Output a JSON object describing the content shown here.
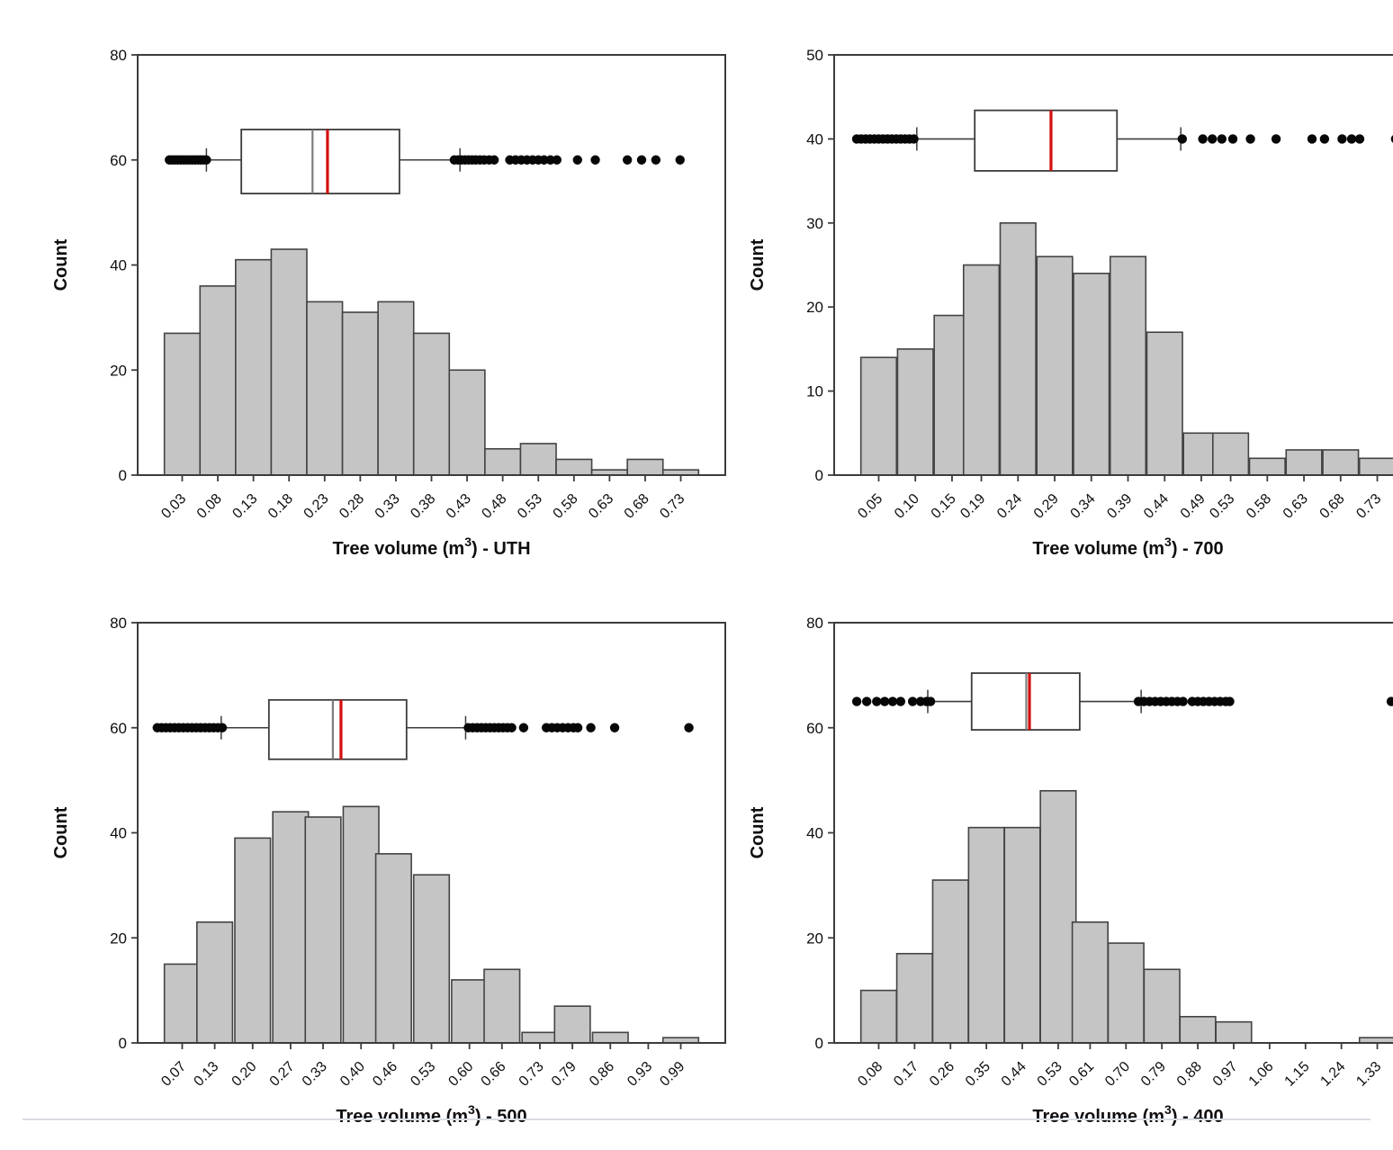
{
  "page": {
    "background": "#ffffff",
    "divider_color": "#d8dde2",
    "colors": {
      "bar_fill": "#c5c5c5",
      "bar_stroke": "#434343",
      "axis": "#3c3c3c",
      "text": "#0f0f0f",
      "box_fill": "#ffffff",
      "box_stroke": "#3c3c3c",
      "median_line": "#7d7d7d",
      "mean_line": "#d40f0f",
      "outlier_dot": "#070707"
    }
  },
  "chart_data": [
    {
      "id": "uth",
      "type": "bar",
      "subtype": "histogram_with_boxplot",
      "ylabel": "Count",
      "xlabel_prefix": "Tree volume (m",
      "xlabel_sup": "3",
      "xlabel_suffix": ") - UTH",
      "ylim": [
        0,
        80
      ],
      "yticks": [
        "0",
        "20",
        "40",
        "60",
        "80"
      ],
      "grid": false,
      "legend": "none",
      "categories": [
        "0.03",
        "0.08",
        "0.13",
        "0.18",
        "0.23",
        "0.28",
        "0.33",
        "0.38",
        "0.43",
        "0.48",
        "0.53",
        "0.58",
        "0.63",
        "0.68",
        "0.73"
      ],
      "values": [
        27,
        36,
        41,
        43,
        33,
        31,
        33,
        27,
        20,
        5,
        6,
        3,
        1,
        3,
        1
      ],
      "boxplot": {
        "center_y": 60,
        "box_top_y": 65.8,
        "box_bottom_y": 53.6,
        "whisker_low": 0.064,
        "q1": 0.113,
        "median": 0.213,
        "mean": 0.234,
        "q3": 0.335,
        "whisker_high": 0.42,
        "outliers_low": [
          0.012,
          0.016,
          0.02,
          0.024,
          0.028,
          0.032,
          0.036,
          0.04,
          0.044,
          0.048,
          0.052,
          0.056,
          0.06,
          0.064
        ],
        "outliers_high": [
          0.412,
          0.417,
          0.422,
          0.427,
          0.432,
          0.437,
          0.442,
          0.448,
          0.454,
          0.461,
          0.468,
          0.49,
          0.498,
          0.506,
          0.514,
          0.522,
          0.53,
          0.538,
          0.547,
          0.556,
          0.585,
          0.61,
          0.655,
          0.675,
          0.695,
          0.729
        ]
      }
    },
    {
      "id": "700",
      "type": "bar",
      "subtype": "histogram_with_boxplot",
      "ylabel": "Count",
      "xlabel_prefix": "Tree volume (m",
      "xlabel_sup": "3",
      "xlabel_suffix": ") - 700",
      "ylim": [
        0,
        50
      ],
      "yticks": [
        "0",
        "10",
        "20",
        "30",
        "40",
        "50"
      ],
      "grid": false,
      "legend": "none",
      "categories": [
        "0.05",
        "0.10",
        "0.15",
        "0.19",
        "0.24",
        "0.29",
        "0.34",
        "0.39",
        "0.44",
        "0.49",
        "0.53",
        "0.58",
        "0.63",
        "0.68",
        "0.73"
      ],
      "values": [
        14,
        15,
        19,
        25,
        30,
        26,
        24,
        26,
        17,
        5,
        5,
        2,
        3,
        3,
        2
      ],
      "boxplot": {
        "center_y": 40,
        "box_top_y": 43.4,
        "box_bottom_y": 36.2,
        "whisker_low": 0.102,
        "q1": 0.181,
        "median": null,
        "mean": 0.285,
        "q3": 0.375,
        "whisker_high": 0.462,
        "outliers_low": [
          0.02,
          0.026,
          0.032,
          0.038,
          0.044,
          0.05,
          0.056,
          0.062,
          0.068,
          0.074,
          0.08,
          0.086,
          0.092,
          0.098
        ],
        "outliers_high": [
          0.464,
          0.492,
          0.505,
          0.518,
          0.533,
          0.557,
          0.592,
          0.641,
          0.658,
          0.682,
          0.695,
          0.706,
          0.755
        ]
      }
    },
    {
      "id": "500",
      "type": "bar",
      "subtype": "histogram_with_boxplot",
      "ylabel": "Count",
      "xlabel_prefix": "Tree volume (m",
      "xlabel_sup": "3",
      "xlabel_suffix": ") - 500",
      "ylim": [
        0,
        80
      ],
      "yticks": [
        "0",
        "20",
        "40",
        "60",
        "80"
      ],
      "grid": false,
      "legend": "none",
      "categories": [
        "0.07",
        "0.13",
        "0.20",
        "0.27",
        "0.33",
        "0.40",
        "0.46",
        "0.53",
        "0.60",
        "0.66",
        "0.73",
        "0.79",
        "0.86",
        "0.93",
        "0.99"
      ],
      "values": [
        15,
        23,
        39,
        44,
        43,
        45,
        36,
        32,
        12,
        14,
        2,
        7,
        2,
        0,
        1
      ],
      "boxplot": {
        "center_y": 60,
        "box_top_y": 65.3,
        "box_bottom_y": 54.0,
        "whisker_low": 0.142,
        "q1": 0.23,
        "median": 0.348,
        "mean": 0.363,
        "q3": 0.484,
        "whisker_high": 0.593,
        "outliers_low": [
          0.024,
          0.032,
          0.04,
          0.048,
          0.056,
          0.064,
          0.072,
          0.08,
          0.088,
          0.096,
          0.104,
          0.112,
          0.12,
          0.128,
          0.136,
          0.144
        ],
        "outliers_high": [
          0.598,
          0.606,
          0.614,
          0.622,
          0.63,
          0.638,
          0.646,
          0.654,
          0.662,
          0.67,
          0.678,
          0.7,
          0.742,
          0.752,
          0.762,
          0.772,
          0.782,
          0.792,
          0.8,
          0.824,
          0.868,
          1.005
        ]
      }
    },
    {
      "id": "400",
      "type": "bar",
      "subtype": "histogram_with_boxplot",
      "ylabel": "Count",
      "xlabel_prefix": "Tree volume (m",
      "xlabel_sup": "3",
      "xlabel_suffix": ") - 400",
      "ylim": [
        0,
        80
      ],
      "yticks": [
        "0",
        "20",
        "40",
        "60",
        "80"
      ],
      "grid": false,
      "legend": "none",
      "categories": [
        "0.08",
        "0.17",
        "0.26",
        "0.35",
        "0.44",
        "0.53",
        "0.61",
        "0.70",
        "0.79",
        "0.88",
        "0.97",
        "1.06",
        "1.15",
        "1.24",
        "1.33"
      ],
      "values": [
        10,
        17,
        31,
        41,
        41,
        48,
        23,
        19,
        14,
        5,
        4,
        0,
        0,
        0,
        1
      ],
      "boxplot": {
        "center_y": 65,
        "box_top_y": 70.4,
        "box_bottom_y": 59.6,
        "whisker_low": 0.203,
        "q1": 0.313,
        "median": 0.45,
        "mean": 0.458,
        "q3": 0.584,
        "whisker_high": 0.738,
        "outliers_low": [
          0.025,
          0.05,
          0.075,
          0.095,
          0.115,
          0.135,
          0.165,
          0.185,
          0.2,
          0.21
        ],
        "outliers_high": [
          0.731,
          0.745,
          0.759,
          0.773,
          0.787,
          0.801,
          0.815,
          0.829,
          0.843,
          0.866,
          0.88,
          0.894,
          0.908,
          0.922,
          0.936,
          0.95,
          0.96,
          1.365
        ]
      }
    }
  ]
}
